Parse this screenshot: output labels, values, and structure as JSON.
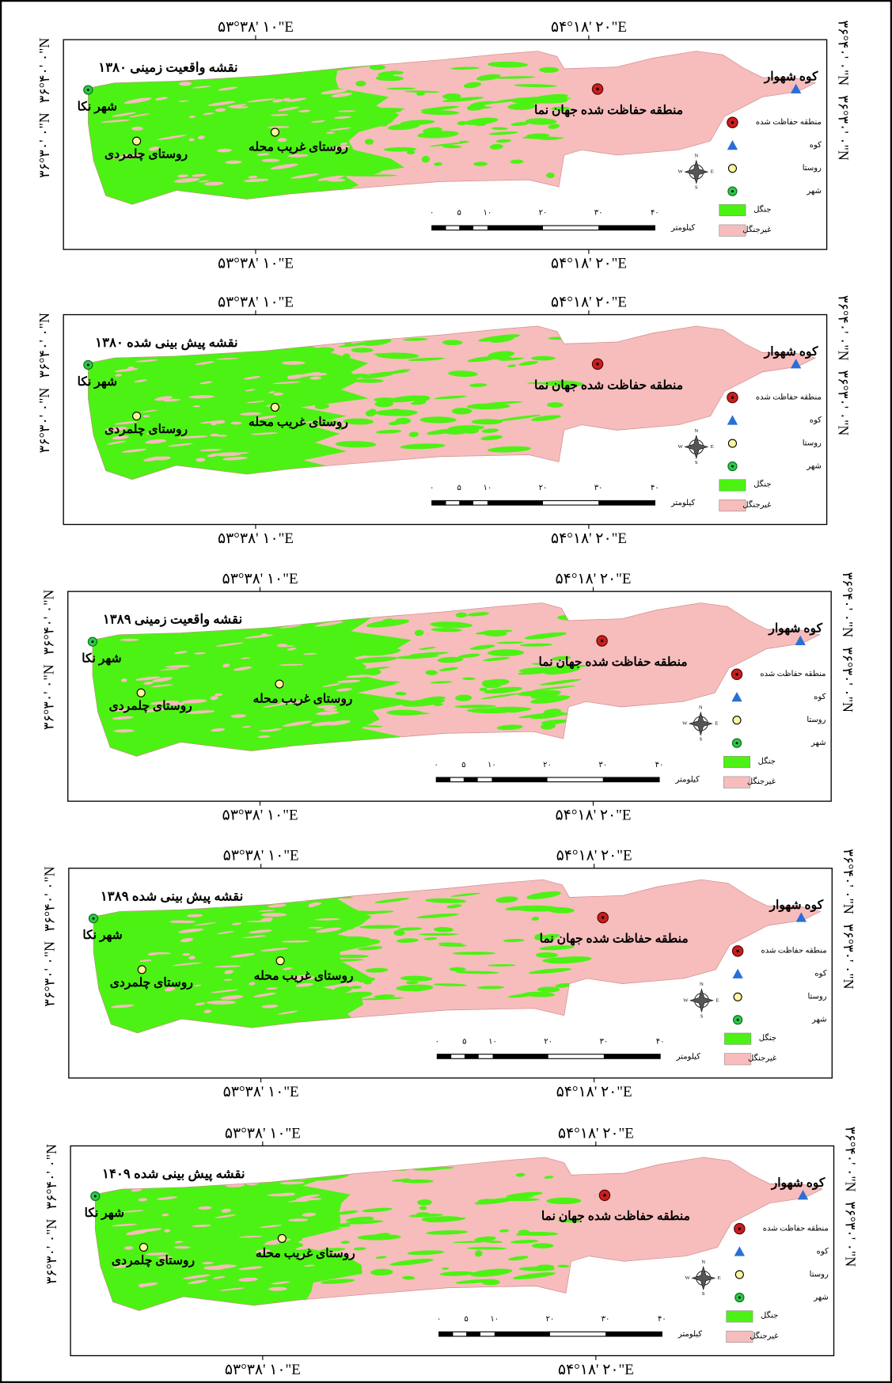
{
  "figure": {
    "coordinates": {
      "top": [
        "۵۳°۳۸' ۱۰\"E",
        "۵۴°۱۸' ۲۰\"E"
      ],
      "bottom": [
        "۵۳°۳۸' ۱۰\"E",
        "۵۴°۱۸' ۲۰\"E"
      ],
      "left": [
        "۳۶°۴۰' ۰\"N",
        "۳۶°۳۰' ۰\"N"
      ],
      "right": [
        "۳۶°۴۰' ۰\"N",
        "۳۶°۳۰' ۰\"N"
      ]
    },
    "panels": [
      {
        "title": "نقشه واقعیت زمینی ۱۳۸۰"
      },
      {
        "title": "نقشه پیش بینی شده ۱۳۸۰"
      },
      {
        "title": "نقشه واقعیت زمینی ۱۳۸۹"
      },
      {
        "title": "نقشه پیش بینی شده ۱۳۸۹"
      },
      {
        "title": "نقشه پیش بینی شده ۱۴۰۹"
      }
    ],
    "places": {
      "city": "شهر نکا",
      "village_chelmardi": "روستای چلمردی",
      "village_gharib": "روستای غریب محله",
      "protected_area": "منطقه حفاظت شده جهان نما",
      "mountain": "کوه شهوار"
    },
    "legend": [
      "منطقه حفاظت شده",
      "کوه",
      "روستا",
      "شهر",
      "جنگل",
      "غیرجنگل"
    ],
    "scale": {
      "ticks": [
        "۰",
        "۵",
        "۱۰",
        "۲۰",
        "۳۰",
        "۴۰"
      ],
      "unit": "کیلومتر"
    },
    "compass": [
      "N",
      "E",
      "S",
      "W"
    ]
  }
}
